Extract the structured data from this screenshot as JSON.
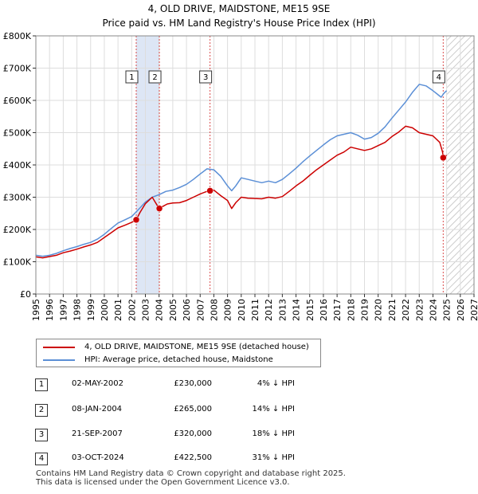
{
  "title": "4, OLD DRIVE, MAIDSTONE, ME15 9SE",
  "subtitle": "Price paid vs. HM Land Registry's House Price Index (HPI)",
  "colors": {
    "property": "#cc0000",
    "hpi": "#5b8fd6",
    "grid": "#dddddd",
    "vline": "#cc0000",
    "shade": "#dde6f5"
  },
  "chart_data": {
    "type": "line",
    "xlim": [
      1995,
      2027
    ],
    "ylim": [
      0,
      800000
    ],
    "yticks": [
      0,
      100000,
      200000,
      300000,
      400000,
      500000,
      600000,
      700000,
      800000
    ],
    "ytick_labels": [
      "£0",
      "£100K",
      "£200K",
      "£300K",
      "£400K",
      "£500K",
      "£600K",
      "£700K",
      "£800K"
    ],
    "xticks": [
      1995,
      1996,
      1997,
      1998,
      1999,
      2000,
      2001,
      2002,
      2003,
      2004,
      2005,
      2006,
      2007,
      2008,
      2009,
      2010,
      2011,
      2012,
      2013,
      2014,
      2015,
      2016,
      2017,
      2018,
      2019,
      2020,
      2021,
      2022,
      2023,
      2024,
      2025,
      2026,
      2027
    ],
    "xtick_labels": [
      "1995",
      "1996",
      "1997",
      "1998",
      "1999",
      "2000",
      "2001",
      "2002",
      "2003",
      "2004",
      "2005",
      "2006",
      "2007",
      "2008",
      "2009",
      "2010",
      "2011",
      "2012",
      "2013",
      "2014",
      "2015",
      "2016",
      "2017",
      "2018",
      "2019",
      "2020",
      "2021",
      "2022",
      "2023",
      "2024",
      "2025",
      "2026",
      "2027"
    ],
    "data_end": 2025.0,
    "series": [
      {
        "name": "4, OLD DRIVE, MAIDSTONE, ME15 9SE (detached house)",
        "color": "#cc0000",
        "x": [
          1995.0,
          1995.5,
          1996.0,
          1996.5,
          1997.0,
          1997.5,
          1998.0,
          1998.5,
          1999.0,
          1999.5,
          2000.0,
          2000.5,
          2001.0,
          2001.5,
          2002.0,
          2002.33,
          2002.6,
          2003.0,
          2003.5,
          2004.0,
          2004.3,
          2004.6,
          2005.0,
          2005.5,
          2006.0,
          2006.5,
          2007.0,
          2007.5,
          2007.72,
          2008.0,
          2008.5,
          2009.0,
          2009.3,
          2009.6,
          2010.0,
          2010.5,
          2011.0,
          2011.5,
          2012.0,
          2012.5,
          2013.0,
          2013.5,
          2014.0,
          2014.5,
          2015.0,
          2015.5,
          2016.0,
          2016.5,
          2017.0,
          2017.5,
          2018.0,
          2018.5,
          2019.0,
          2019.5,
          2020.0,
          2020.5,
          2021.0,
          2021.5,
          2022.0,
          2022.5,
          2023.0,
          2023.5,
          2024.0,
          2024.5,
          2024.7,
          2024.75,
          2025.0
        ],
        "values": [
          115000,
          112000,
          116000,
          120000,
          128000,
          133000,
          139000,
          146000,
          152000,
          160000,
          175000,
          190000,
          205000,
          213000,
          222000,
          230000,
          252000,
          280000,
          300000,
          265000,
          272000,
          279000,
          282000,
          283000,
          290000,
          300000,
          310000,
          318000,
          320000,
          322000,
          305000,
          290000,
          265000,
          283000,
          300000,
          297000,
          296000,
          295000,
          300000,
          297000,
          302000,
          318000,
          335000,
          350000,
          368000,
          385000,
          400000,
          415000,
          430000,
          440000,
          455000,
          450000,
          445000,
          450000,
          460000,
          470000,
          488000,
          502000,
          520000,
          515000,
          500000,
          495000,
          490000,
          470000,
          440000,
          422500,
          430000
        ]
      },
      {
        "name": "HPI: Average price, detached house, Maidstone",
        "color": "#5b8fd6",
        "x": [
          1995.0,
          1995.5,
          1996.0,
          1996.5,
          1997.0,
          1997.5,
          1998.0,
          1998.5,
          1999.0,
          1999.5,
          2000.0,
          2000.5,
          2001.0,
          2001.5,
          2002.0,
          2002.5,
          2003.0,
          2003.5,
          2004.0,
          2004.5,
          2005.0,
          2005.5,
          2006.0,
          2006.5,
          2007.0,
          2007.5,
          2008.0,
          2008.5,
          2009.0,
          2009.3,
          2009.6,
          2010.0,
          2010.5,
          2011.0,
          2011.5,
          2012.0,
          2012.5,
          2013.0,
          2013.5,
          2014.0,
          2014.5,
          2015.0,
          2015.5,
          2016.0,
          2016.5,
          2017.0,
          2017.5,
          2018.0,
          2018.5,
          2019.0,
          2019.5,
          2020.0,
          2020.5,
          2021.0,
          2021.5,
          2022.0,
          2022.5,
          2023.0,
          2023.5,
          2024.0,
          2024.3,
          2024.6,
          2024.8,
          2025.0
        ],
        "values": [
          120000,
          117000,
          120000,
          126000,
          134000,
          141000,
          147000,
          154000,
          160000,
          170000,
          185000,
          203000,
          220000,
          230000,
          240000,
          262000,
          285000,
          300000,
          308000,
          318000,
          322000,
          330000,
          340000,
          355000,
          372000,
          388000,
          385000,
          365000,
          335000,
          320000,
          335000,
          360000,
          355000,
          350000,
          345000,
          350000,
          345000,
          355000,
          372000,
          390000,
          410000,
          428000,
          445000,
          462000,
          478000,
          490000,
          495000,
          500000,
          492000,
          480000,
          485000,
          498000,
          518000,
          545000,
          570000,
          595000,
          625000,
          650000,
          645000,
          630000,
          620000,
          610000,
          622000,
          630000
        ]
      }
    ],
    "sales": [
      {
        "label": "1",
        "date": "02-MAY-2002",
        "x": 2002.33,
        "price": 230000,
        "price_text": "£230,000",
        "hpi_text": "4% ↓ HPI"
      },
      {
        "label": "2",
        "date": "08-JAN-2004",
        "x": 2004.02,
        "price": 265000,
        "price_text": "£265,000",
        "hpi_text": "14% ↓ HPI"
      },
      {
        "label": "3",
        "date": "21-SEP-2007",
        "x": 2007.72,
        "price": 320000,
        "price_text": "£320,000",
        "hpi_text": "18% ↓ HPI"
      },
      {
        "label": "4",
        "date": "03-OCT-2024",
        "x": 2024.75,
        "price": 422500,
        "price_text": "£422,500",
        "hpi_text": "31% ↓ HPI"
      }
    ],
    "shaded_ranges": [
      [
        2002.33,
        2004.02
      ]
    ]
  },
  "legend": [
    {
      "label": "4, OLD DRIVE, MAIDSTONE, ME15 9SE (detached house)"
    },
    {
      "label": "HPI: Average price, detached house, Maidstone"
    }
  ],
  "footer": {
    "line1": "Contains HM Land Registry data © Crown copyright and database right 2025.",
    "line2": "This data is licensed under the Open Government Licence v3.0."
  }
}
